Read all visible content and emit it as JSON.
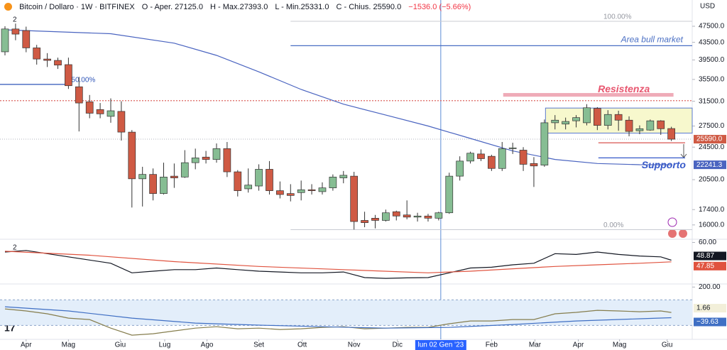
{
  "chart_data": [
    {
      "type": "candlestick",
      "title": "Bitcoin / Dollaro · 1W · BITFINEX",
      "ohlc_labels": [
        "O - Aper. 27125.0",
        "H - Max.27393.0",
        "L - Min.25331.0",
        "C - Chius. 25590.0",
        "−1536.0 (−5.66%)"
      ],
      "currency": "USD",
      "study_count": 2,
      "log_scale": true,
      "xlim": [
        -0.47,
        64.97
      ],
      "ylim": [
        14850,
        54850
      ],
      "yticks": [
        {
          "value": 47500,
          "label": "47500.0"
        },
        {
          "value": 43500,
          "label": "43500.0"
        },
        {
          "value": 39500,
          "label": "39500.0"
        },
        {
          "value": 35500,
          "label": "35500.0"
        },
        {
          "value": 31500,
          "label": "31500.0"
        },
        {
          "value": 27500,
          "label": "27500.0"
        },
        {
          "value": 24500,
          "label": "24500.0"
        },
        {
          "value": 20500,
          "label": "20500.0"
        },
        {
          "value": 17400,
          "label": "17400.0"
        },
        {
          "value": 16000,
          "label": "16000.0"
        }
      ],
      "xticks": [
        {
          "value": 2.0,
          "label": "Apr"
        },
        {
          "value": 6.0,
          "label": "Mag"
        },
        {
          "value": 10.9,
          "label": "Giu"
        },
        {
          "value": 15.1,
          "label": "Lug"
        },
        {
          "value": 19.1,
          "label": "Ago"
        },
        {
          "value": 24.0,
          "label": "Set"
        },
        {
          "value": 28.1,
          "label": "Ott"
        },
        {
          "value": 33.0,
          "label": "Nov"
        },
        {
          "value": 37.1,
          "label": "Dic"
        },
        {
          "value": 41.2,
          "label": "lun 02 Gen '23",
          "highlight": true
        },
        {
          "value": 46.0,
          "label": "Feb"
        },
        {
          "value": 50.1,
          "label": "Mar"
        },
        {
          "value": 54.2,
          "label": "Apr"
        },
        {
          "value": 58.1,
          "label": "Mag"
        },
        {
          "value": 62.6,
          "label": "Giu"
        }
      ],
      "up_color": "#86bd93",
      "down_color": "#cf5a44",
      "open": [
        41300,
        46800,
        46400,
        42200,
        39700,
        39400,
        38500,
        34100,
        31400,
        30100,
        29000,
        29800,
        26600,
        20600,
        21100,
        19000,
        20900,
        20800,
        22500,
        23200,
        22900,
        24300,
        21400,
        19500,
        19800,
        21700,
        19300,
        19000,
        19100,
        19400,
        19200,
        19600,
        20700,
        20900,
        16400,
        16600,
        16400,
        17200,
        16900,
        16700,
        16800,
        16600,
        17100,
        20900,
        22700,
        23600,
        23300,
        21800,
        24300,
        24100,
        22400,
        22200,
        28000,
        27800,
        28300,
        28000,
        30300,
        27600,
        29300,
        28400,
        26800,
        26900,
        28300,
        27125
      ],
      "high": [
        47500,
        48200,
        47400,
        42900,
        41000,
        40000,
        40000,
        36000,
        32600,
        31200,
        32000,
        31500,
        26900,
        22000,
        21800,
        22500,
        22400,
        24100,
        24300,
        24000,
        25000,
        25200,
        21600,
        21800,
        22300,
        22700,
        20300,
        20000,
        20400,
        20000,
        20200,
        21100,
        21500,
        21400,
        17200,
        16900,
        17400,
        17300,
        18300,
        17100,
        17000,
        17200,
        21300,
        23300,
        23900,
        24200,
        23500,
        25200,
        25100,
        24500,
        23200,
        28500,
        29200,
        28800,
        29200,
        31000,
        30500,
        30000,
        29900,
        29000,
        27600,
        28500,
        28400,
        27393
      ],
      "low": [
        40500,
        44000,
        41200,
        38500,
        38000,
        37600,
        33700,
        26700,
        28700,
        28700,
        28000,
        25400,
        17600,
        17700,
        18300,
        18900,
        19600,
        20700,
        21700,
        22400,
        22500,
        20800,
        18700,
        19100,
        19300,
        18900,
        18500,
        18200,
        18300,
        18900,
        18900,
        19300,
        20100,
        15600,
        15800,
        15700,
        16300,
        16400,
        16500,
        16300,
        16300,
        16400,
        17000,
        20400,
        22400,
        22700,
        21500,
        21500,
        23600,
        21500,
        19700,
        22000,
        27000,
        27000,
        27300,
        27600,
        26900,
        27000,
        26800,
        26000,
        26300,
        26800,
        26200,
        25331
      ],
      "close": [
        46800,
        45500,
        42200,
        39700,
        39400,
        38400,
        34300,
        31200,
        29500,
        29400,
        29900,
        26600,
        20600,
        21100,
        19000,
        20800,
        20700,
        22500,
        23100,
        22900,
        24300,
        21400,
        19300,
        19900,
        21700,
        19300,
        18900,
        18800,
        19400,
        19300,
        19600,
        20800,
        21000,
        16300,
        16200,
        16400,
        17100,
        16800,
        16700,
        16800,
        16600,
        17100,
        20900,
        22700,
        23700,
        23000,
        21800,
        24300,
        24400,
        22300,
        22100,
        28000,
        28400,
        28200,
        28800,
        30400,
        27600,
        29300,
        28400,
        26700,
        27100,
        28300,
        27100,
        25590
      ],
      "last_price": {
        "value": 25590,
        "label": "25590.0"
      },
      "series": [
        {
          "color": "#4a64c0",
          "x": [
            0,
            10,
            16,
            20,
            24,
            28,
            32,
            36,
            40,
            44,
            48,
            52,
            56,
            60,
            63
          ],
          "values": [
            46580,
            45600,
            43300,
            40500,
            37000,
            33600,
            31000,
            29200,
            27500,
            25700,
            24000,
            22900,
            22400,
            22250,
            22241.3
          ]
        }
      ],
      "fib_levels": [
        {
          "value": 48800,
          "label": "100.00%",
          "x": [
            27,
            64.97
          ]
        },
        {
          "value": 34550,
          "label": "50.00%",
          "x": [
            -0.47,
            5.8
          ]
        },
        {
          "value": 15590,
          "label": "0.00%",
          "x": [
            27,
            64.97
          ]
        }
      ],
      "lines": [
        {
          "text": "Area bull market",
          "value": 42700,
          "x": [
            27,
            64.97
          ],
          "color": "#4a6fc4"
        },
        {
          "value": 31600,
          "x": [
            -0.47,
            64.97
          ],
          "color": "#d9534f",
          "dotted": true
        },
        {
          "value": 25090,
          "x": [
            56.1,
            64.3
          ],
          "color": "#d9534f"
        },
        {
          "text": "Supporto",
          "value": 23100,
          "x": [
            56.1,
            64.3
          ],
          "color": "#3558c9"
        }
      ],
      "zones": [
        {
          "text": "Resistenza",
          "range": [
            32300,
            32950
          ],
          "x": [
            47.1,
            63.2
          ],
          "color": "#e8889a"
        },
        {
          "range": [
            26460,
            30350
          ],
          "x": [
            51.1,
            64.97
          ],
          "color": "#f3f5b8"
        }
      ]
    },
    {
      "type": "line",
      "study_count": 2,
      "ylim": [
        34,
        62
      ],
      "yticks": [
        {
          "value": 60,
          "label": "60.00"
        }
      ],
      "series": [
        {
          "color": "#131722",
          "x": [
            0,
            2,
            4,
            6,
            8,
            10,
            12,
            14,
            16,
            18,
            20,
            22,
            24,
            26,
            28,
            30,
            32,
            34,
            36,
            38,
            40,
            42,
            44,
            46,
            48,
            50,
            52,
            54,
            56,
            58,
            60,
            62,
            63
          ],
          "values": [
            54,
            55,
            53,
            51,
            49,
            47,
            41,
            42,
            43,
            43,
            44,
            43,
            42,
            41.5,
            41,
            41,
            41.5,
            38,
            37.5,
            37.8,
            38,
            41,
            44,
            44.5,
            46,
            47,
            53,
            52.5,
            54,
            52.5,
            51.5,
            51,
            48.87
          ]
        },
        {
          "color": "#e0533f",
          "x": [
            0,
            8,
            16,
            24,
            32,
            40,
            44,
            48,
            52,
            56,
            60,
            63
          ],
          "values": [
            54.5,
            52,
            48,
            45,
            43,
            41,
            42,
            43.5,
            45,
            46,
            47,
            47.85
          ]
        }
      ]
    },
    {
      "type": "line",
      "ylim": [
        -220,
        224
      ],
      "yticks": [
        {
          "value": 200,
          "label": "200.00"
        }
      ],
      "band": [
        -100,
        100
      ],
      "series": [
        {
          "color": "#857d4d",
          "x": [
            0,
            2,
            4,
            6,
            8,
            10,
            12,
            14,
            16,
            18,
            20,
            22,
            24,
            26,
            28,
            30,
            32,
            34,
            36,
            38,
            40,
            42,
            44,
            46,
            48,
            50,
            52,
            54,
            56,
            58,
            60,
            62,
            63
          ],
          "values": [
            29,
            13,
            -9,
            -43,
            -54,
            -121,
            -176,
            -165,
            -143,
            -121,
            -110,
            -126,
            -121,
            -132,
            -126,
            -115,
            -110,
            -126,
            -121,
            -115,
            -115,
            -87,
            -65,
            -65,
            -54,
            -54,
            -9,
            2,
            18,
            13,
            7,
            13,
            1.66
          ]
        },
        {
          "color": "#3f6fc4",
          "x": [
            0,
            6,
            12,
            18,
            24,
            30,
            36,
            42,
            48,
            54,
            60,
            63
          ],
          "values": [
            46,
            13,
            -43,
            -82,
            -98,
            -110,
            -121,
            -115,
            -93,
            -65,
            -48,
            -39.63
          ],
          "value_labels": [
            null,
            null,
            null,
            null,
            null,
            null,
            null,
            null,
            null,
            null,
            null,
            "−39.63"
          ]
        }
      ]
    }
  ]
}
